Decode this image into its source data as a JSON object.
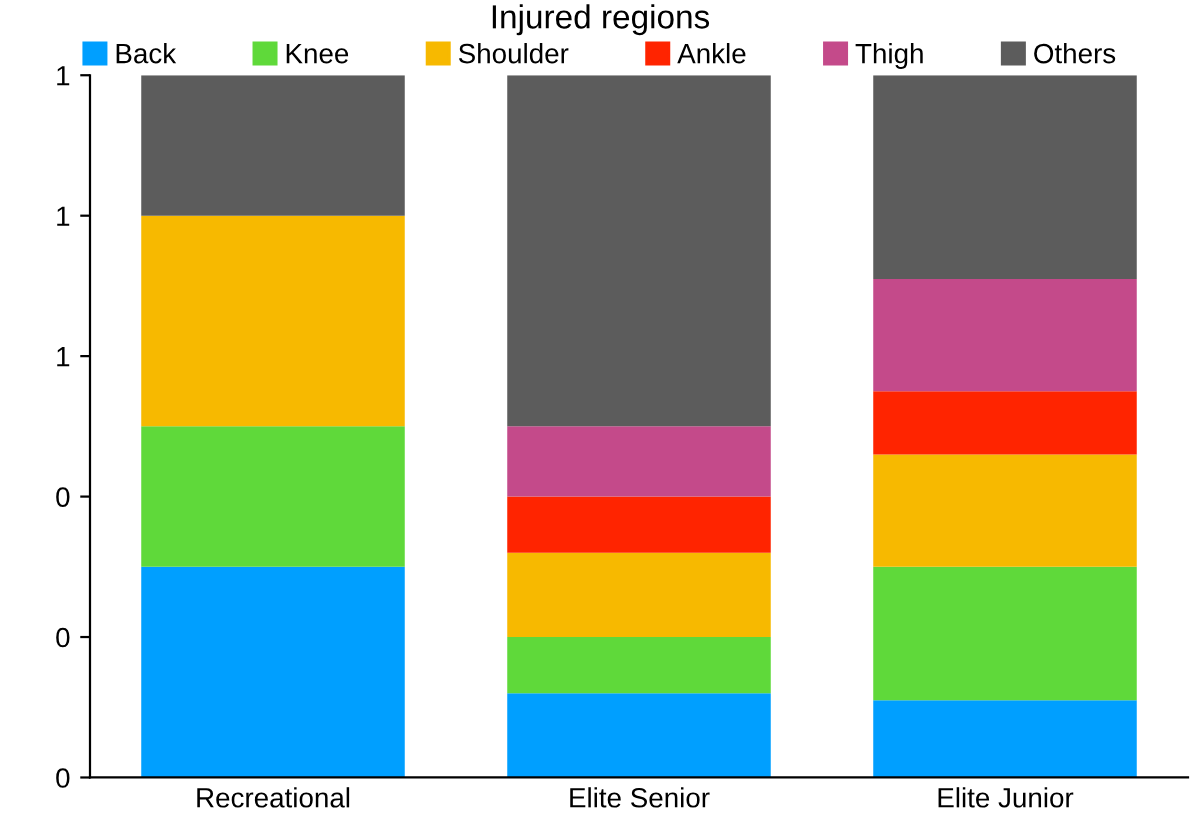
{
  "chart_data": {
    "type": "bar",
    "title": "Injured regions",
    "stacked": true,
    "categories": [
      "Recreational",
      "Elite Senior",
      "Elite Junior"
    ],
    "series": [
      {
        "name": "Back",
        "color": "#009fff",
        "values": [
          0.3,
          0.12,
          0.11
        ]
      },
      {
        "name": "Knee",
        "color": "#5fd93a",
        "values": [
          0.2,
          0.08,
          0.19
        ]
      },
      {
        "name": "Shoulder",
        "color": "#f7b900",
        "values": [
          0.3,
          0.12,
          0.16
        ]
      },
      {
        "name": "Ankle",
        "color": "#ff2400",
        "values": [
          0,
          0.08,
          0.09
        ]
      },
      {
        "name": "Thigh",
        "color": "#c44a8a",
        "values": [
          0,
          0.1,
          0.16
        ]
      },
      {
        "name": "Others",
        "color": "#5c5c5c",
        "values": [
          0.2,
          0.5,
          0.29
        ]
      }
    ],
    "ylim": [
      0,
      1
    ],
    "yticks": [
      {
        "value": 0,
        "label": "0"
      },
      {
        "value": 0.2,
        "label": "0"
      },
      {
        "value": 0.4,
        "label": "0"
      },
      {
        "value": 0.6,
        "label": "1"
      },
      {
        "value": 0.8,
        "label": "1"
      },
      {
        "value": 1,
        "label": "1"
      }
    ],
    "legend": "top",
    "grid": false
  }
}
